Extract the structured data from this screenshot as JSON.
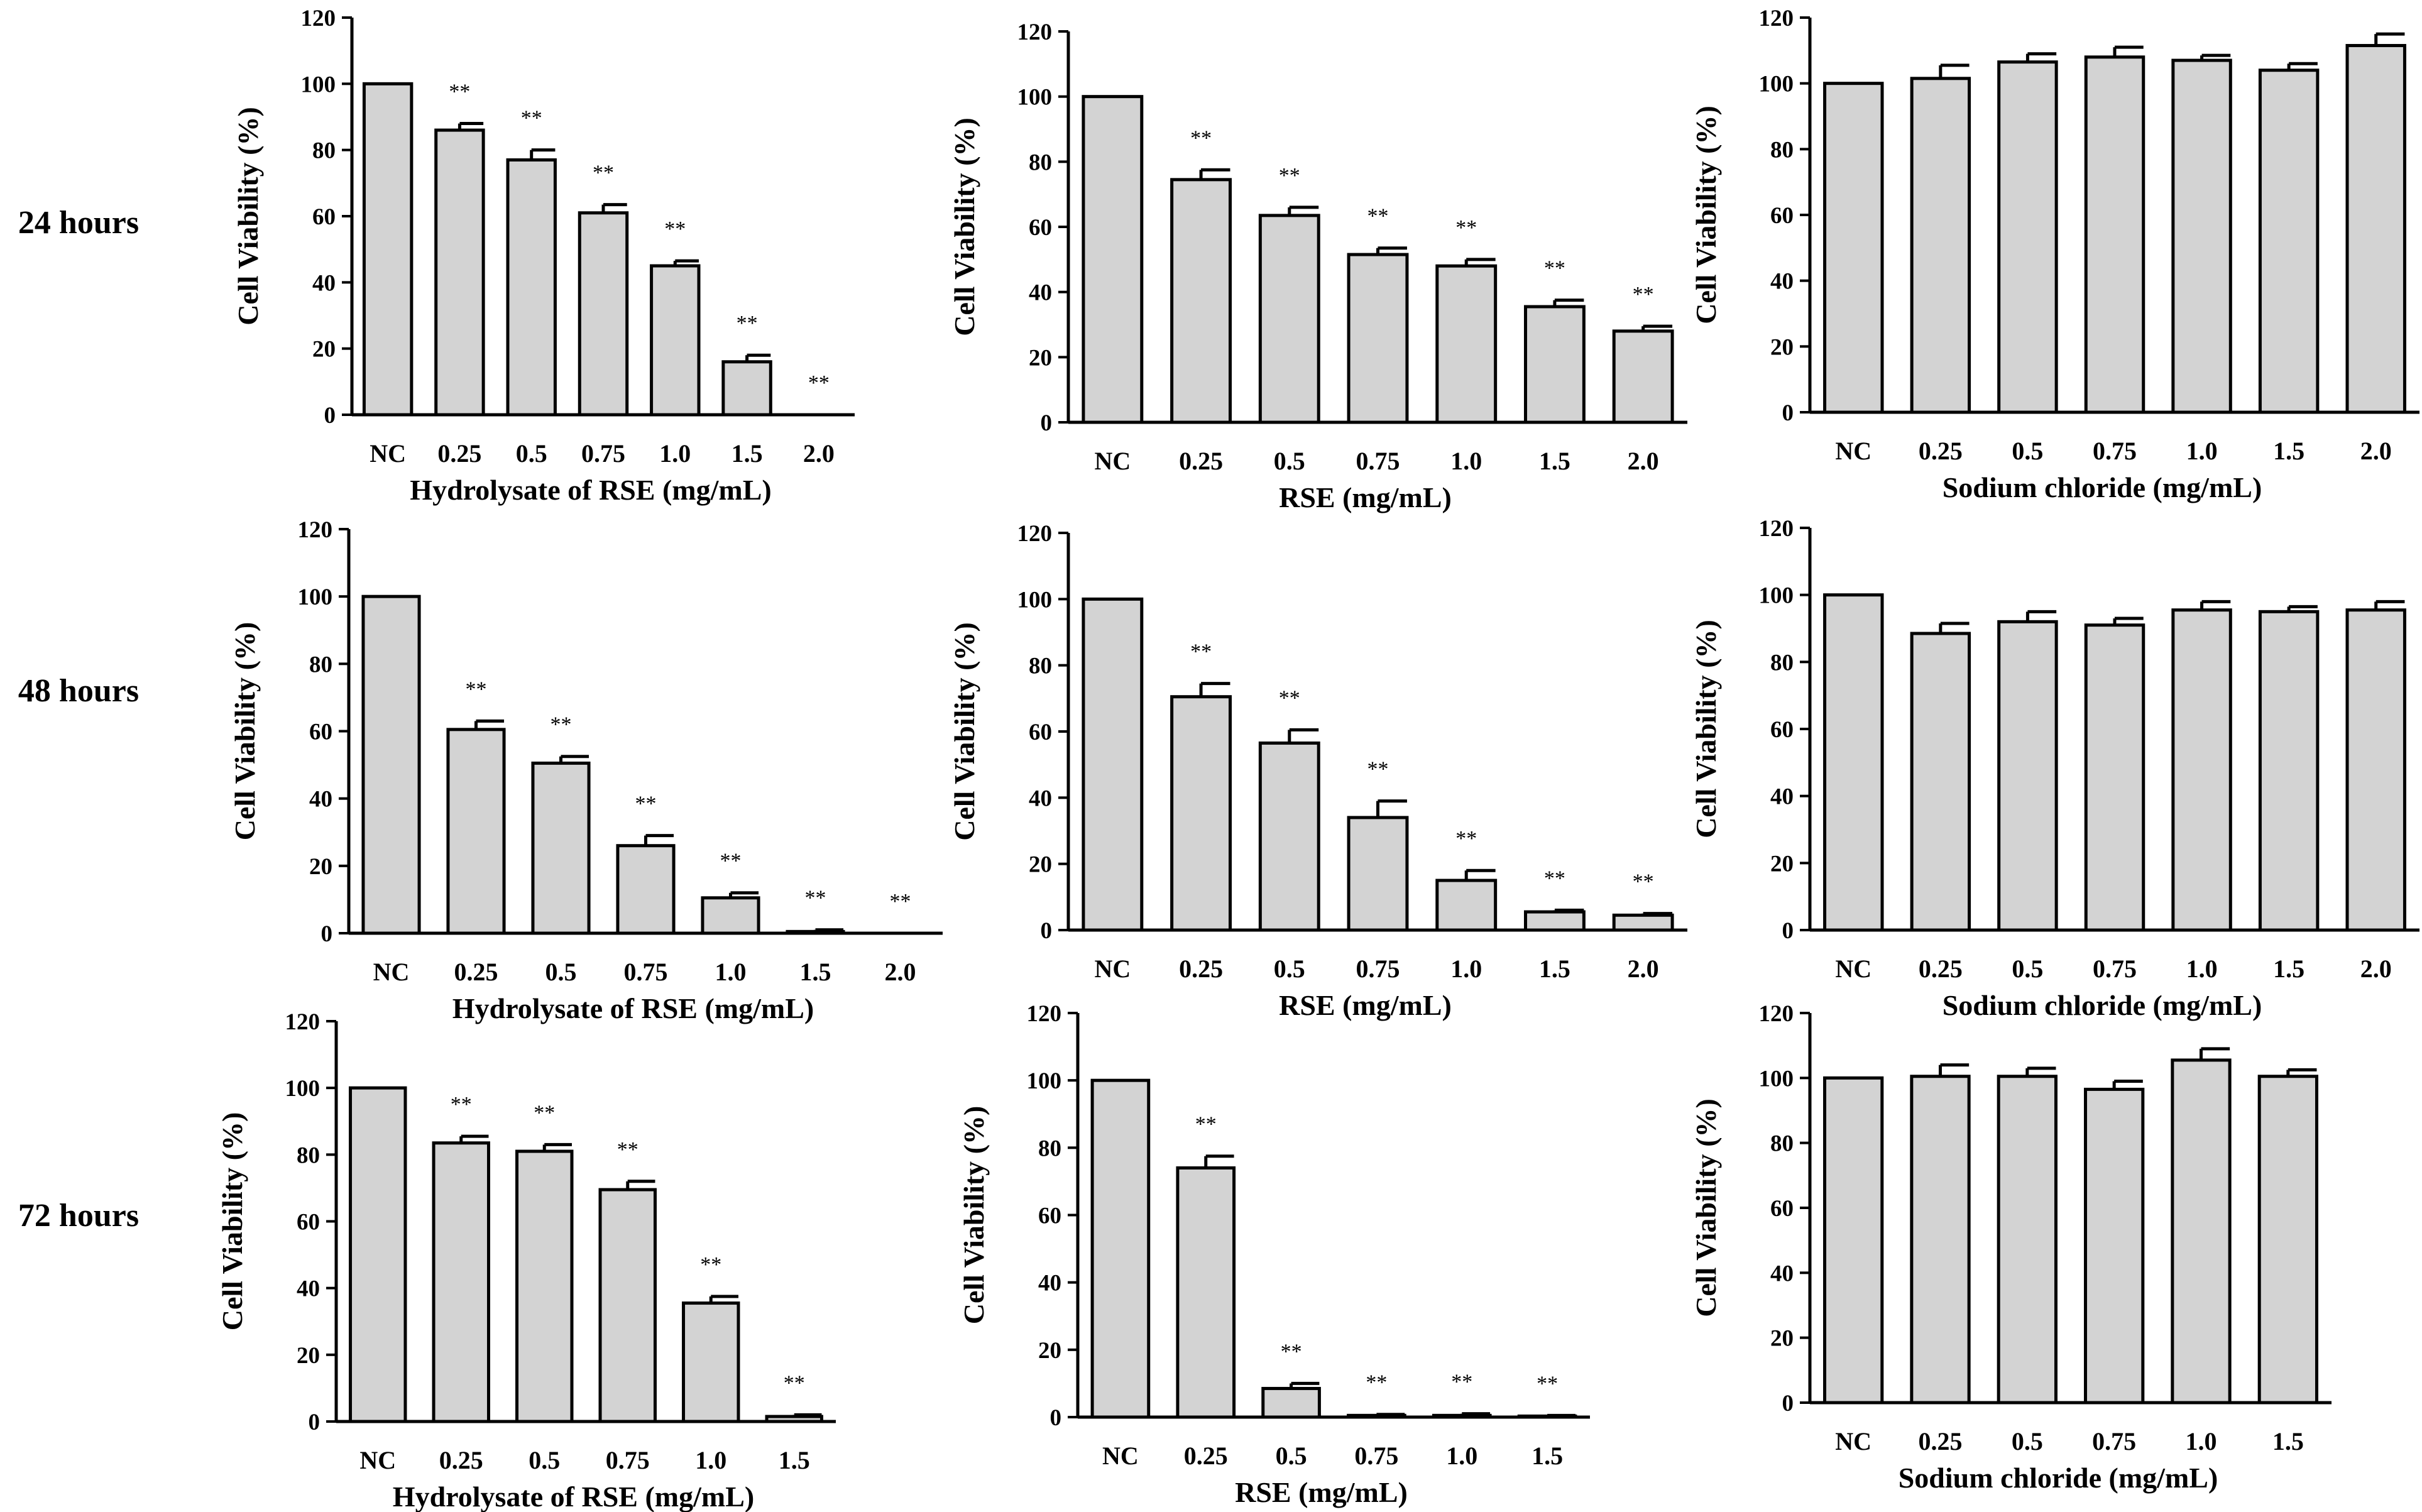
{
  "row_labels": [
    "24 hours",
    "48 hours",
    "72 hours"
  ],
  "axis_common": {
    "ylabel": "Cell Viability (%)",
    "yticks": [
      0,
      20,
      40,
      60,
      80,
      100,
      120
    ],
    "ylim": [
      0,
      120
    ]
  },
  "significance_marker": "**",
  "chart_data": [
    {
      "type": "bar",
      "row": "24 hours",
      "xlabel": "Hydrolysate of RSE (mg/mL)",
      "ylabel": "Cell Viability (%)",
      "ylim": [
        0,
        120
      ],
      "categories": [
        "NC",
        "0.25",
        "0.5",
        "0.75",
        "1.0",
        "1.5",
        "2.0"
      ],
      "values": [
        100,
        86,
        77,
        61,
        45,
        16,
        0
      ],
      "errors": [
        0,
        2,
        3,
        2.5,
        1.5,
        2,
        0
      ],
      "significant": [
        false,
        true,
        true,
        true,
        true,
        true,
        true
      ]
    },
    {
      "type": "bar",
      "row": "24 hours",
      "xlabel": "RSE (mg/mL)",
      "ylabel": "Cell Viability (%)",
      "ylim": [
        0,
        120
      ],
      "categories": [
        "NC",
        "0.25",
        "0.5",
        "0.75",
        "1.0",
        "1.5",
        "2.0"
      ],
      "values": [
        100,
        74.5,
        63.5,
        51.5,
        48,
        35.5,
        28
      ],
      "errors": [
        0,
        3,
        2.5,
        2,
        2,
        2,
        1.5
      ],
      "significant": [
        false,
        true,
        true,
        true,
        true,
        true,
        true
      ]
    },
    {
      "type": "bar",
      "row": "24 hours",
      "xlabel": "Sodium chloride (mg/mL)",
      "ylabel": "Cell Viability (%)",
      "ylim": [
        0,
        120
      ],
      "categories": [
        "NC",
        "0.25",
        "0.5",
        "0.75",
        "1.0",
        "1.5",
        "2.0"
      ],
      "values": [
        100,
        101.5,
        106.5,
        108,
        107,
        104,
        111.5
      ],
      "errors": [
        0,
        4,
        2.5,
        3,
        1.5,
        2,
        3.5
      ],
      "significant": [
        false,
        false,
        false,
        false,
        false,
        false,
        false
      ]
    },
    {
      "type": "bar",
      "row": "48 hours",
      "xlabel": "Hydrolysate of RSE (mg/mL)",
      "ylabel": "Cell Viability (%)",
      "ylim": [
        0,
        120
      ],
      "categories": [
        "NC",
        "0.25",
        "0.5",
        "0.75",
        "1.0",
        "1.5",
        "2.0"
      ],
      "values": [
        100,
        60.5,
        50.5,
        26,
        10.5,
        0.5,
        0
      ],
      "errors": [
        0,
        2.5,
        2,
        3,
        1.5,
        0.5,
        0
      ],
      "significant": [
        false,
        true,
        true,
        true,
        true,
        true,
        true
      ]
    },
    {
      "type": "bar",
      "row": "48 hours",
      "xlabel": "RSE (mg/mL)",
      "ylabel": "Cell Viability (%)",
      "ylim": [
        0,
        120
      ],
      "categories": [
        "NC",
        "0.25",
        "0.5",
        "0.75",
        "1.0",
        "1.5",
        "2.0"
      ],
      "values": [
        100,
        70.5,
        56.5,
        34,
        15,
        5.5,
        4.5
      ],
      "errors": [
        0,
        4,
        4,
        5,
        3,
        0.5,
        0.5
      ],
      "significant": [
        false,
        true,
        true,
        true,
        true,
        true,
        true
      ]
    },
    {
      "type": "bar",
      "row": "48 hours",
      "xlabel": "Sodium chloride (mg/mL)",
      "ylabel": "Cell Viability (%)",
      "ylim": [
        0,
        120
      ],
      "categories": [
        "NC",
        "0.25",
        "0.5",
        "0.75",
        "1.0",
        "1.5",
        "2.0"
      ],
      "values": [
        100,
        88.5,
        92,
        91,
        95.5,
        95,
        95.5
      ],
      "errors": [
        0,
        3,
        3,
        2,
        2.5,
        1.5,
        2.5
      ],
      "significant": [
        false,
        false,
        false,
        false,
        false,
        false,
        false
      ]
    },
    {
      "type": "bar",
      "row": "72 hours",
      "xlabel": "Hydrolysate of RSE (mg/mL)",
      "ylabel": "Cell Viability (%)",
      "ylim": [
        0,
        120
      ],
      "categories": [
        "NC",
        "0.25",
        "0.5",
        "0.75",
        "1.0",
        "1.5"
      ],
      "values": [
        100,
        83.5,
        81,
        69.5,
        35.5,
        1.5
      ],
      "errors": [
        0,
        2,
        2,
        2.5,
        2,
        0.5
      ],
      "significant": [
        false,
        true,
        true,
        true,
        true,
        true
      ]
    },
    {
      "type": "bar",
      "row": "72 hours",
      "xlabel": "RSE (mg/mL)",
      "ylabel": "Cell Viability (%)",
      "ylim": [
        0,
        120
      ],
      "categories": [
        "NC",
        "0.25",
        "0.5",
        "0.75",
        "1.0",
        "1.5"
      ],
      "values": [
        100,
        74,
        8.5,
        0.5,
        0.5,
        0.3
      ],
      "errors": [
        0,
        3.5,
        1.5,
        0.3,
        0.5,
        0.2
      ],
      "significant": [
        false,
        true,
        true,
        true,
        true,
        true
      ]
    },
    {
      "type": "bar",
      "row": "72 hours",
      "xlabel": "Sodium chloride (mg/mL)",
      "ylabel": "Cell Viability (%)",
      "ylim": [
        0,
        120
      ],
      "categories": [
        "NC",
        "0.25",
        "0.5",
        "0.75",
        "1.0",
        "1.5"
      ],
      "values": [
        100,
        100.5,
        100.5,
        96.5,
        105.5,
        100.5
      ],
      "errors": [
        0,
        3.5,
        2.5,
        2.5,
        3.5,
        2
      ],
      "significant": [
        false,
        false,
        false,
        false,
        false,
        false
      ]
    }
  ]
}
